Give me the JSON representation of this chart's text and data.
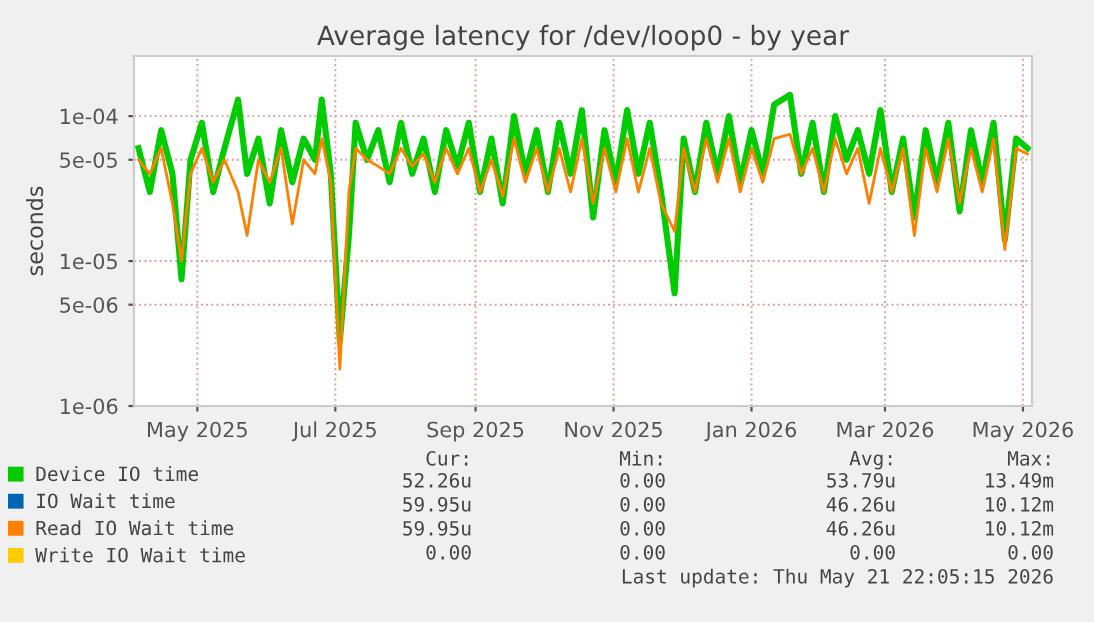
{
  "chart_data": {
    "type": "line",
    "title": "Average latency for /dev/loop0 - by year",
    "ylabel": "seconds",
    "log": "y",
    "grid": true,
    "legend": "bottom",
    "line_style": "solid",
    "xlim": [
      "2025-04-03",
      "2026-05-05"
    ],
    "ylim": [
      1e-06,
      0.00026
    ],
    "xticks": [
      {
        "value": "2025-05-01",
        "label": "May 2025"
      },
      {
        "value": "2025-07-01",
        "label": "Jul 2025"
      },
      {
        "value": "2025-09-01",
        "label": "Sep 2025"
      },
      {
        "value": "2025-11-01",
        "label": "Nov 2025"
      },
      {
        "value": "2026-01-01",
        "label": "Jan 2026"
      },
      {
        "value": "2026-03-01",
        "label": "Mar 2026"
      },
      {
        "value": "2026-05-01",
        "label": "May 2026"
      }
    ],
    "yticks": [
      {
        "value": 1e-06,
        "label": "1e-06"
      },
      {
        "value": 5e-06,
        "label": "5e-06"
      },
      {
        "value": 1e-05,
        "label": "1e-05"
      },
      {
        "value": 5e-05,
        "label": "5e-05"
      },
      {
        "value": 0.0001,
        "label": "1e-04"
      }
    ],
    "x": [
      "2025-04-05",
      "2025-04-10",
      "2025-04-15",
      "2025-04-20",
      "2025-04-24",
      "2025-04-28",
      "2025-05-03",
      "2025-05-08",
      "2025-05-13",
      "2025-05-19",
      "2025-05-23",
      "2025-05-28",
      "2025-06-02",
      "2025-06-07",
      "2025-06-12",
      "2025-06-17",
      "2025-06-22",
      "2025-06-25",
      "2025-06-29",
      "2025-07-03",
      "2025-07-07",
      "2025-07-10",
      "2025-07-15",
      "2025-07-20",
      "2025-07-25",
      "2025-07-30",
      "2025-08-04",
      "2025-08-09",
      "2025-08-14",
      "2025-08-19",
      "2025-08-24",
      "2025-08-29",
      "2025-09-03",
      "2025-09-08",
      "2025-09-13",
      "2025-09-18",
      "2025-09-23",
      "2025-09-28",
      "2025-10-03",
      "2025-10-08",
      "2025-10-13",
      "2025-10-18",
      "2025-10-23",
      "2025-10-28",
      "2025-11-02",
      "2025-11-07",
      "2025-11-12",
      "2025-11-17",
      "2025-11-22",
      "2025-11-28",
      "2025-12-02",
      "2025-12-07",
      "2025-12-12",
      "2025-12-17",
      "2025-12-22",
      "2025-12-27",
      "2026-01-01",
      "2026-01-06",
      "2026-01-11",
      "2026-01-18",
      "2026-01-23",
      "2026-01-28",
      "2026-02-02",
      "2026-02-07",
      "2026-02-12",
      "2026-02-17",
      "2026-02-22",
      "2026-02-27",
      "2026-03-04",
      "2026-03-09",
      "2026-03-14",
      "2026-03-19",
      "2026-03-24",
      "2026-03-29",
      "2026-04-03",
      "2026-04-08",
      "2026-04-13",
      "2026-04-18",
      "2026-04-23",
      "2026-04-28",
      "2026-05-03"
    ],
    "series": [
      {
        "name": "Device IO time",
        "color": "#00cc00",
        "values": [
          6e-05,
          3e-05,
          8e-05,
          4e-05,
          7.5e-06,
          5e-05,
          9e-05,
          3e-05,
          6e-05,
          0.00013,
          4e-05,
          7e-05,
          2.5e-05,
          8e-05,
          3.5e-05,
          7e-05,
          5e-05,
          0.00013,
          4e-05,
          2.8e-06,
          1.5e-05,
          9e-05,
          5e-05,
          8e-05,
          3.5e-05,
          9e-05,
          4e-05,
          7e-05,
          3e-05,
          8e-05,
          4.5e-05,
          9e-05,
          3e-05,
          7e-05,
          2.5e-05,
          0.0001,
          4e-05,
          8e-05,
          3e-05,
          9e-05,
          4e-05,
          0.00011,
          2e-05,
          8e-05,
          3.5e-05,
          0.00011,
          4e-05,
          9e-05,
          3e-05,
          6e-06,
          7e-05,
          3e-05,
          9e-05,
          4e-05,
          0.0001,
          3.5e-05,
          8e-05,
          4e-05,
          0.00012,
          0.00014,
          4e-05,
          9e-05,
          3e-05,
          0.0001,
          5e-05,
          8e-05,
          4e-05,
          0.00011,
          3e-05,
          7e-05,
          2e-05,
          8e-05,
          3.5e-05,
          9e-05,
          2.2e-05,
          8e-05,
          3.5e-05,
          9e-05,
          1.4e-05,
          7e-05,
          6e-05
        ]
      },
      {
        "name": "IO Wait time",
        "color": "#0066b3",
        "values": [
          null,
          null,
          null,
          null,
          null,
          null,
          null,
          null,
          null,
          null,
          null,
          null,
          null,
          null,
          null,
          null,
          null,
          null,
          null,
          null,
          null,
          null,
          null,
          null,
          null,
          null,
          null,
          null,
          null,
          null,
          null,
          null,
          null,
          null,
          null,
          null,
          null,
          null,
          null,
          null,
          null,
          null,
          null,
          null,
          null,
          null,
          null,
          null,
          null,
          null,
          null,
          null,
          null,
          null,
          null,
          null,
          null,
          null,
          null,
          null,
          null,
          null,
          null,
          null,
          null,
          null,
          null,
          null,
          null,
          null,
          null,
          null,
          null,
          null,
          null,
          null,
          null,
          null,
          null,
          null,
          null
        ]
      },
      {
        "name": "Read IO Wait time",
        "color": "#ff8000",
        "values": [
          5e-05,
          4e-05,
          6e-05,
          2.5e-05,
          1e-05,
          4e-05,
          6e-05,
          3.5e-05,
          5e-05,
          3e-05,
          1.5e-05,
          5e-05,
          3.5e-05,
          6e-05,
          1.8e-05,
          5e-05,
          4e-05,
          7e-05,
          3.5e-05,
          1.8e-06,
          3e-05,
          6e-05,
          5e-05,
          4.5e-05,
          4e-05,
          6e-05,
          4.5e-05,
          5.5e-05,
          3.5e-05,
          6e-05,
          4e-05,
          6e-05,
          3e-05,
          5e-05,
          2.8e-05,
          7e-05,
          3.5e-05,
          6e-05,
          3e-05,
          6e-05,
          3e-05,
          7e-05,
          2.5e-05,
          6e-05,
          3e-05,
          7e-05,
          3e-05,
          6e-05,
          2.5e-05,
          1.6e-05,
          6e-05,
          3e-05,
          7e-05,
          3.5e-05,
          7e-05,
          3e-05,
          6e-05,
          3.5e-05,
          7e-05,
          7.5e-05,
          4e-05,
          6e-05,
          3e-05,
          7e-05,
          4e-05,
          6e-05,
          2.5e-05,
          6e-05,
          3e-05,
          6e-05,
          1.5e-05,
          6e-05,
          3e-05,
          7e-05,
          2.5e-05,
          6e-05,
          3e-05,
          7e-05,
          1.2e-05,
          6e-05,
          5.5e-05
        ]
      },
      {
        "name": "Write IO Wait time",
        "color": "#ffcc00",
        "values": [
          null,
          null,
          null,
          null,
          null,
          null,
          null,
          null,
          null,
          null,
          null,
          null,
          null,
          null,
          null,
          null,
          null,
          null,
          null,
          null,
          null,
          null,
          null,
          null,
          null,
          null,
          null,
          null,
          null,
          null,
          null,
          null,
          null,
          null,
          null,
          null,
          null,
          null,
          null,
          null,
          null,
          null,
          null,
          null,
          null,
          null,
          null,
          null,
          null,
          null,
          null,
          null,
          null,
          null,
          null,
          null,
          null,
          null,
          null,
          null,
          null,
          null,
          null,
          null,
          null,
          null,
          null,
          null,
          null,
          null,
          null,
          null,
          null,
          null,
          null,
          null,
          null,
          null,
          null,
          null,
          null
        ]
      }
    ],
    "annotations": [
      "Cur:",
      "Min:",
      "Avg:",
      "Max:",
      "52.26u",
      "0.00",
      "53.79u",
      "13.49m",
      "59.95u",
      "0.00",
      "46.26u",
      "10.12m",
      "59.95u",
      "0.00",
      "46.26u",
      "10.12m",
      "0.00",
      "0.00",
      "0.00",
      "0.00",
      "Last update: Thu May 21 22:05:15 2026"
    ]
  }
}
